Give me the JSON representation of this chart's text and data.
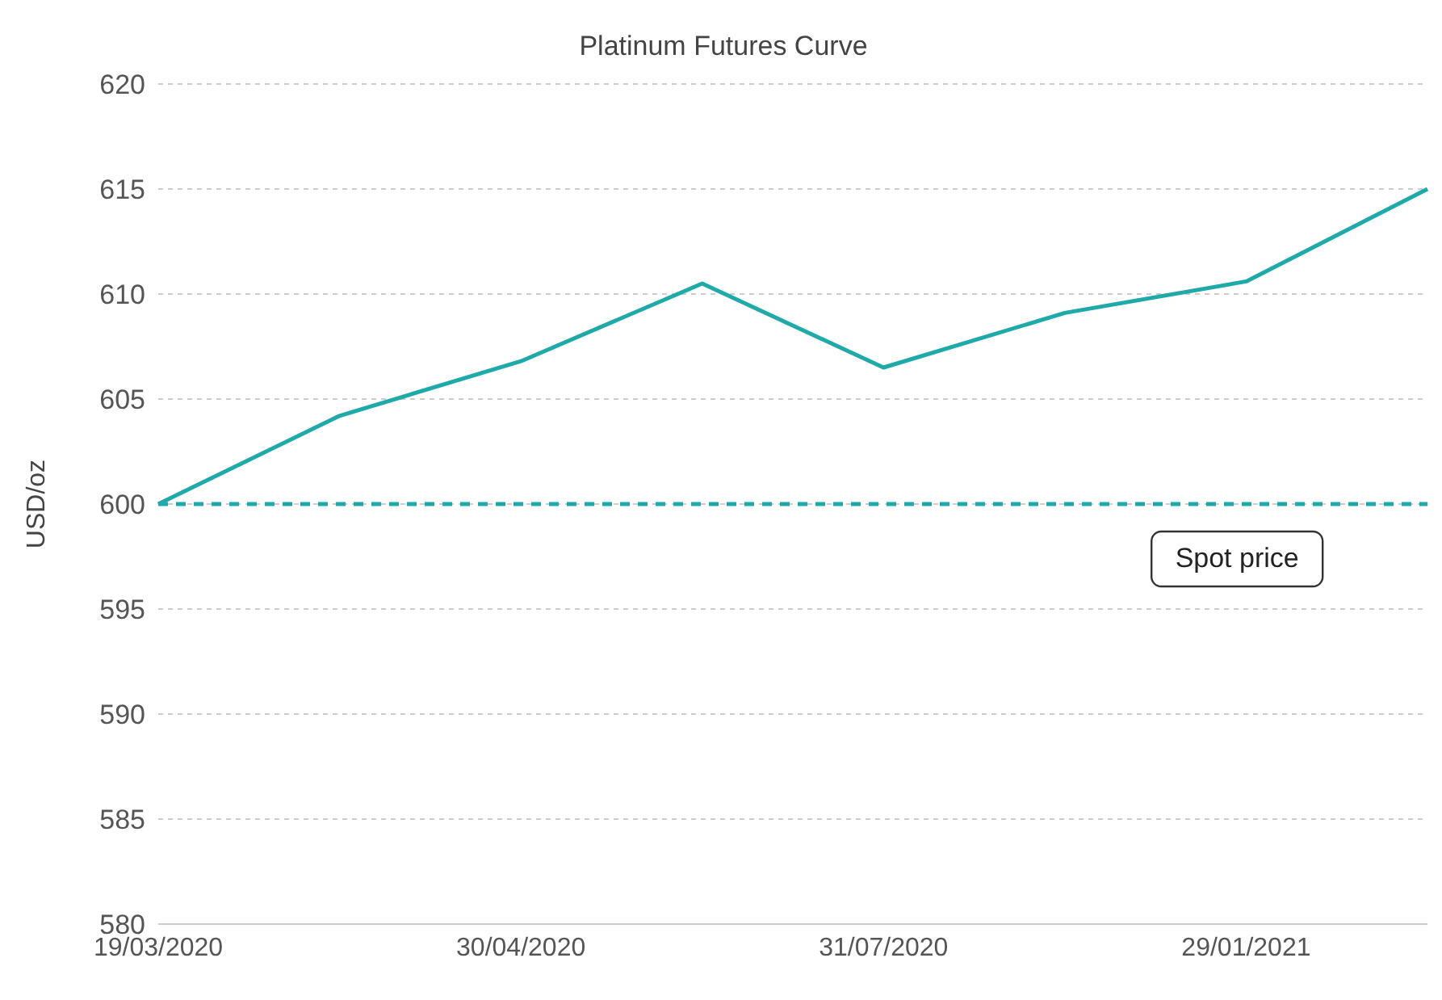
{
  "chart_data": {
    "type": "line",
    "title": "Platinum Futures Curve",
    "ylabel": "USD/oz",
    "categories": [
      "19/03/2020",
      null,
      "30/04/2020",
      null,
      "31/07/2020",
      null,
      "29/01/2021",
      null
    ],
    "series": [
      {
        "color": "#1fa9a9",
        "values": [
          600,
          604.2,
          606.8,
          610.5,
          606.5,
          609.1,
          610.6,
          615
        ]
      }
    ],
    "ylim": [
      580,
      620
    ],
    "yticks": [
      580,
      585,
      590,
      595,
      600,
      605,
      610,
      615,
      620
    ],
    "grid": "y",
    "marker": "none",
    "line_style": "solid",
    "ref_lines": [
      {
        "axis": "y",
        "value": 600,
        "label": "Spot price",
        "color": "#1fa9a9",
        "line_style": "dashed"
      }
    ]
  }
}
